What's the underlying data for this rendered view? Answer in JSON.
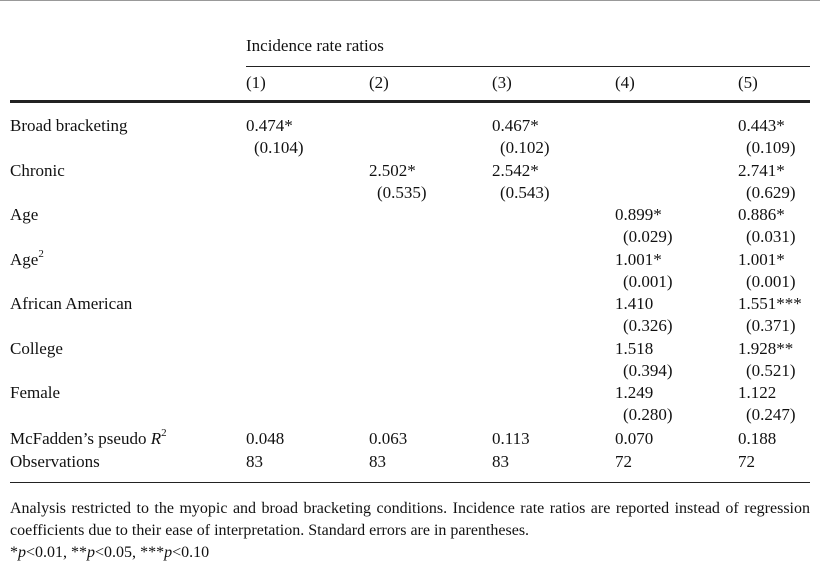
{
  "header": {
    "group_label": "Incidence rate ratios",
    "columns": [
      "(1)",
      "(2)",
      "(3)",
      "(4)",
      "(5)"
    ]
  },
  "rows": [
    {
      "label": "Broad bracketing",
      "coef": [
        "0.474*",
        "",
        "0.467*",
        "",
        "0.443*"
      ],
      "se": [
        "(0.104)",
        "",
        "(0.102)",
        "",
        "(0.109)"
      ]
    },
    {
      "label": "Chronic",
      "coef": [
        "",
        "2.502*",
        "2.542*",
        "",
        "2.741*"
      ],
      "se": [
        "",
        "(0.535)",
        "(0.543)",
        "",
        "(0.629)"
      ]
    },
    {
      "label": "Age",
      "coef": [
        "",
        "",
        "",
        "0.899*",
        "0.886*"
      ],
      "se": [
        "",
        "",
        "",
        "(0.029)",
        "(0.031)"
      ]
    },
    {
      "label": "Age",
      "label_sup": "2",
      "coef": [
        "",
        "",
        "",
        "1.001*",
        "1.001*"
      ],
      "se": [
        "",
        "",
        "",
        "(0.001)",
        "(0.001)"
      ]
    },
    {
      "label": "African American",
      "coef": [
        "",
        "",
        "",
        "1.410",
        "1.551***"
      ],
      "se": [
        "",
        "",
        "",
        "(0.326)",
        "(0.371)"
      ]
    },
    {
      "label": "College",
      "coef": [
        "",
        "",
        "",
        "1.518",
        "1.928**"
      ],
      "se": [
        "",
        "",
        "",
        "(0.394)",
        "(0.521)"
      ]
    },
    {
      "label": "Female",
      "coef": [
        "",
        "",
        "",
        "1.249",
        "1.122"
      ],
      "se": [
        "",
        "",
        "",
        "(0.280)",
        "(0.247)"
      ]
    }
  ],
  "stats": [
    {
      "label": "McFadden’s pseudo ",
      "label_italic": "R",
      "label_sup": "2",
      "values": [
        "0.048",
        "0.063",
        "0.113",
        "0.070",
        "0.188"
      ]
    },
    {
      "label": "Observations",
      "values": [
        "83",
        "83",
        "83",
        "72",
        "72"
      ]
    }
  ],
  "note": {
    "text": "Analysis restricted to the myopic and broad bracketing conditions. Incidence rate ratios are reported instead of regression coefficients due to their ease of interpretation. Standard errors are in parentheses.",
    "p1_stars": "*",
    "p1_value": "<0.01, ",
    "p2_stars": "**",
    "p2_value": "<0.05, ",
    "p3_stars": "***",
    "p3_value": "<0.10",
    "p_symbol": "p"
  }
}
